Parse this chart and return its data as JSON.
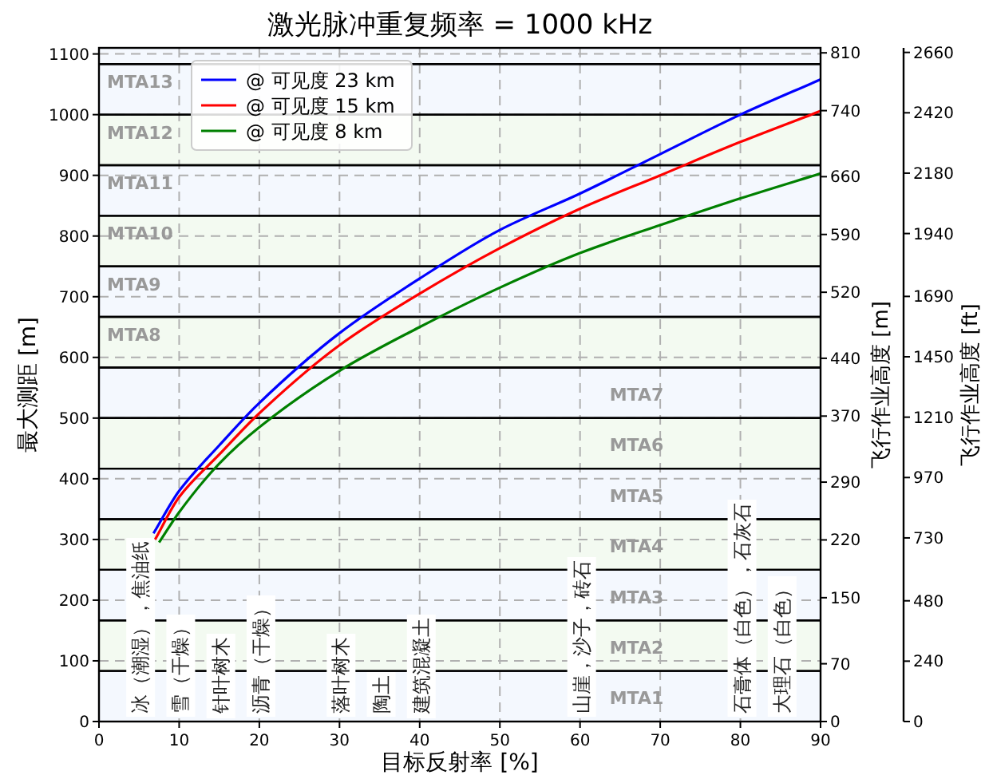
{
  "chart_data": {
    "type": "line",
    "title": "激光脉冲重复频率 = 1000 kHz",
    "xlabel": "目标反射率 [%]",
    "ylabel": "最大测距 [m]",
    "y2label": "飞行作业高度 [m]",
    "y3label": "飞行作业高度 [ft]",
    "xlim": [
      0,
      90
    ],
    "xticks": [
      0,
      10,
      20,
      30,
      40,
      50,
      60,
      70,
      80,
      90
    ],
    "ylim": [
      0,
      1110
    ],
    "yticks": [
      0,
      100,
      200,
      300,
      400,
      500,
      600,
      700,
      800,
      900,
      1000,
      1100
    ],
    "y2lim": [
      0,
      816
    ],
    "y2ticks": [
      0,
      70,
      150,
      220,
      290,
      370,
      440,
      520,
      590,
      660,
      740,
      810
    ],
    "y3lim": [
      0,
      2678
    ],
    "y3ticks": [
      0,
      240,
      480,
      730,
      970,
      1210,
      1450,
      1690,
      1940,
      2180,
      2420,
      2660
    ],
    "grid": true,
    "legend": "top left",
    "line_style": "solid",
    "series": [
      {
        "name": "@ 可见度 23 km",
        "color": "#0000ff",
        "x": [
          6.8,
          10,
          15,
          20,
          30,
          40,
          50,
          60,
          70,
          80,
          90
        ],
        "values": [
          310,
          380,
          455,
          525,
          640,
          730,
          810,
          870,
          935,
          1000,
          1058
        ]
      },
      {
        "name": "@ 可见度 15 km",
        "color": "#ff0000",
        "x": [
          7,
          10,
          15,
          20,
          30,
          40,
          50,
          60,
          70,
          80,
          90
        ],
        "values": [
          300,
          370,
          440,
          508,
          620,
          705,
          780,
          845,
          900,
          955,
          1006
        ]
      },
      {
        "name": "@ 可见度 8 km",
        "color": "#008000",
        "x": [
          7.5,
          10,
          15,
          20,
          30,
          40,
          50,
          60,
          70,
          80,
          90
        ],
        "values": [
          295,
          345,
          425,
          485,
          578,
          650,
          715,
          772,
          818,
          862,
          903
        ]
      }
    ],
    "bands": [
      {
        "axis": "y",
        "from": 0,
        "to": 83.3,
        "label": "MTA1",
        "color": "#f4f8fe"
      },
      {
        "axis": "y",
        "from": 83.3,
        "to": 166.7,
        "label": "MTA2",
        "color": "#f3faf1"
      },
      {
        "axis": "y",
        "from": 166.7,
        "to": 250,
        "label": "MTA3",
        "color": "#f4f8fe"
      },
      {
        "axis": "y",
        "from": 250,
        "to": 333.3,
        "label": "MTA4",
        "color": "#f3faf1"
      },
      {
        "axis": "y",
        "from": 333.3,
        "to": 416.7,
        "label": "MTA5",
        "color": "#f4f8fe"
      },
      {
        "axis": "y",
        "from": 416.7,
        "to": 500,
        "label": "MTA6",
        "color": "#f3faf1"
      },
      {
        "axis": "y",
        "from": 500,
        "to": 583.3,
        "label": "MTA7",
        "color": "#f4f8fe"
      },
      {
        "axis": "y",
        "from": 583.3,
        "to": 666.7,
        "label": "MTA8",
        "color": "#f3faf1"
      },
      {
        "axis": "y",
        "from": 666.7,
        "to": 750,
        "label": "MTA9",
        "color": "#f4f8fe"
      },
      {
        "axis": "y",
        "from": 750,
        "to": 833.3,
        "label": "MTA10",
        "color": "#f3faf1"
      },
      {
        "axis": "y",
        "from": 833.3,
        "to": 916.7,
        "label": "MTA11",
        "color": "#f4f8fe"
      },
      {
        "axis": "y",
        "from": 916.7,
        "to": 1000,
        "label": "MTA12",
        "color": "#f3faf1"
      },
      {
        "axis": "y",
        "from": 1000,
        "to": 1083.3,
        "label": "MTA13",
        "color": "#f4f8fe"
      },
      {
        "axis": "y",
        "from": 1083.3,
        "to": 1110,
        "color": "#f4f8fe"
      }
    ],
    "annotations": [
      {
        "text": "冰（潮湿），焦油纸",
        "x": 5,
        "y": 0
      },
      {
        "text": "雪（干燥）",
        "x": 10,
        "y": 0
      },
      {
        "text": "针叶树木",
        "x": 15,
        "y": 0
      },
      {
        "text": "沥青（干燥）",
        "x": 20,
        "y": 0
      },
      {
        "text": "落叶树木",
        "x": 30,
        "y": 0
      },
      {
        "text": "陶土",
        "x": 35,
        "y": 0
      },
      {
        "text": "建筑混凝土",
        "x": 40,
        "y": 0
      },
      {
        "text": "山崖，沙子，砖石",
        "x": 60,
        "y": 0
      },
      {
        "text": "石膏体（白色），石灰石",
        "x": 80,
        "y": 0
      },
      {
        "text": "大理石（白色）",
        "x": 85,
        "y": 0
      }
    ]
  }
}
